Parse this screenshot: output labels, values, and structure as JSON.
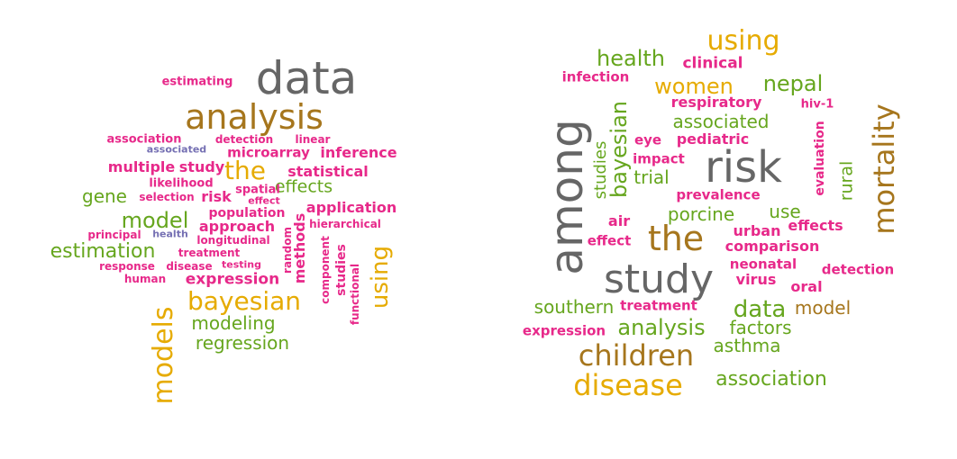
{
  "colors": {
    "magenta": "#e7298a",
    "gray": "#666666",
    "brown": "#a6761d",
    "orange": "#e6ab02",
    "green": "#66a61e",
    "purple": "#7570b3"
  },
  "left_cloud": {
    "words": [
      {
        "text": "estimating",
        "color": "magenta"
      },
      {
        "text": "data",
        "color": "gray"
      },
      {
        "text": "analysis",
        "color": "brown"
      },
      {
        "text": "association",
        "color": "magenta"
      },
      {
        "text": "detection",
        "color": "magenta"
      },
      {
        "text": "linear",
        "color": "magenta"
      },
      {
        "text": "associated",
        "color": "purple"
      },
      {
        "text": "microarray",
        "color": "magenta"
      },
      {
        "text": "inference",
        "color": "magenta"
      },
      {
        "text": "multiple",
        "color": "magenta"
      },
      {
        "text": "study",
        "color": "magenta"
      },
      {
        "text": "the",
        "color": "orange"
      },
      {
        "text": "statistical",
        "color": "magenta"
      },
      {
        "text": "likelihood",
        "color": "magenta"
      },
      {
        "text": "effects",
        "color": "green"
      },
      {
        "text": "gene",
        "color": "green"
      },
      {
        "text": "selection",
        "color": "magenta"
      },
      {
        "text": "risk",
        "color": "magenta"
      },
      {
        "text": "spatial",
        "color": "magenta"
      },
      {
        "text": "effect",
        "color": "magenta"
      },
      {
        "text": "application",
        "color": "magenta"
      },
      {
        "text": "population",
        "color": "magenta"
      },
      {
        "text": "model",
        "color": "green"
      },
      {
        "text": "approach",
        "color": "magenta"
      },
      {
        "text": "hierarchical",
        "color": "magenta"
      },
      {
        "text": "principal",
        "color": "magenta"
      },
      {
        "text": "health",
        "color": "purple"
      },
      {
        "text": "longitudinal",
        "color": "magenta"
      },
      {
        "text": "estimation",
        "color": "green"
      },
      {
        "text": "treatment",
        "color": "magenta"
      },
      {
        "text": "response",
        "color": "magenta"
      },
      {
        "text": "disease",
        "color": "magenta"
      },
      {
        "text": "testing",
        "color": "magenta"
      },
      {
        "text": "human",
        "color": "magenta"
      },
      {
        "text": "expression",
        "color": "magenta"
      },
      {
        "text": "random",
        "color": "magenta"
      },
      {
        "text": "methods",
        "color": "magenta"
      },
      {
        "text": "component",
        "color": "magenta"
      },
      {
        "text": "studies",
        "color": "magenta"
      },
      {
        "text": "functional",
        "color": "magenta"
      },
      {
        "text": "using",
        "color": "orange"
      },
      {
        "text": "bayesian",
        "color": "orange"
      },
      {
        "text": "models",
        "color": "orange"
      },
      {
        "text": "modeling",
        "color": "green"
      },
      {
        "text": "regression",
        "color": "green"
      }
    ]
  },
  "right_cloud": {
    "words": [
      {
        "text": "using",
        "color": "orange"
      },
      {
        "text": "health",
        "color": "green"
      },
      {
        "text": "clinical",
        "color": "magenta"
      },
      {
        "text": "infection",
        "color": "magenta"
      },
      {
        "text": "women",
        "color": "orange"
      },
      {
        "text": "nepal",
        "color": "green"
      },
      {
        "text": "mortality",
        "color": "brown"
      },
      {
        "text": "respiratory",
        "color": "magenta"
      },
      {
        "text": "hiv-1",
        "color": "magenta"
      },
      {
        "text": "associated",
        "color": "green"
      },
      {
        "text": "among",
        "color": "gray"
      },
      {
        "text": "bayesian",
        "color": "green"
      },
      {
        "text": "eye",
        "color": "magenta"
      },
      {
        "text": "pediatric",
        "color": "magenta"
      },
      {
        "text": "evaluation",
        "color": "magenta"
      },
      {
        "text": "risk",
        "color": "gray"
      },
      {
        "text": "studies",
        "color": "green"
      },
      {
        "text": "impact",
        "color": "magenta"
      },
      {
        "text": "trial",
        "color": "green"
      },
      {
        "text": "rural",
        "color": "green"
      },
      {
        "text": "prevalence",
        "color": "magenta"
      },
      {
        "text": "use",
        "color": "green"
      },
      {
        "text": "porcine",
        "color": "green"
      },
      {
        "text": "air",
        "color": "magenta"
      },
      {
        "text": "effects",
        "color": "magenta"
      },
      {
        "text": "urban",
        "color": "magenta"
      },
      {
        "text": "the",
        "color": "brown"
      },
      {
        "text": "effect",
        "color": "magenta"
      },
      {
        "text": "comparison",
        "color": "magenta"
      },
      {
        "text": "neonatal",
        "color": "magenta"
      },
      {
        "text": "detection",
        "color": "magenta"
      },
      {
        "text": "study",
        "color": "gray"
      },
      {
        "text": "virus",
        "color": "magenta"
      },
      {
        "text": "oral",
        "color": "magenta"
      },
      {
        "text": "southern",
        "color": "green"
      },
      {
        "text": "treatment",
        "color": "magenta"
      },
      {
        "text": "data",
        "color": "green"
      },
      {
        "text": "model",
        "color": "brown"
      },
      {
        "text": "expression",
        "color": "magenta"
      },
      {
        "text": "analysis",
        "color": "green"
      },
      {
        "text": "factors",
        "color": "green"
      },
      {
        "text": "asthma",
        "color": "green"
      },
      {
        "text": "children",
        "color": "brown"
      },
      {
        "text": "association",
        "color": "green"
      },
      {
        "text": "disease",
        "color": "orange"
      }
    ]
  }
}
